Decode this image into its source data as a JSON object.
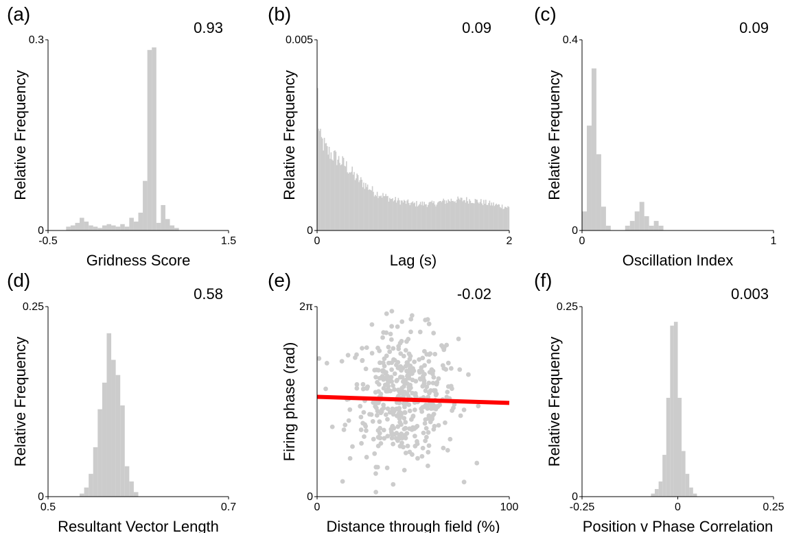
{
  "chart_data": [
    {
      "panel": "(a)",
      "value": "0.93",
      "type": "bar",
      "xlabel": "Gridness Score",
      "ylabel": "Relative Frequency",
      "xlim": [
        -0.5,
        1.5
      ],
      "ylim": [
        0,
        0.3
      ],
      "xticks": [
        "-0.5",
        "1.5"
      ],
      "yticks": [
        "0",
        "0.3"
      ],
      "bin_width": 0.05,
      "bin_start": -0.3,
      "values": [
        0.006,
        0.008,
        0.012,
        0.02,
        0.014,
        0.008,
        0.006,
        0.004,
        0.008,
        0.01,
        0.008,
        0.006,
        0.01,
        0.006,
        0.02,
        0.014,
        0.028,
        0.078,
        0.284,
        0.288,
        0.012,
        0.04,
        0.018,
        0.008,
        0.004
      ]
    },
    {
      "panel": "(b)",
      "value": "0.09",
      "type": "bar",
      "xlabel": "Lag (s)",
      "ylabel": "Relative Frequency",
      "xlim": [
        0,
        2
      ],
      "ylim": [
        0,
        0.005
      ],
      "xticks": [
        "0",
        "2"
      ],
      "yticks": [
        "0",
        "0.005"
      ],
      "x_range": [
        0,
        2
      ],
      "profile": [
        [
          0.0,
          0.0041
        ],
        [
          0.005,
          0.0036
        ],
        [
          0.015,
          0.0028
        ],
        [
          0.03,
          0.0024
        ],
        [
          0.06,
          0.0023
        ],
        [
          0.1,
          0.0021
        ],
        [
          0.2,
          0.0019
        ],
        [
          0.3,
          0.0017
        ],
        [
          0.4,
          0.0014
        ],
        [
          0.5,
          0.0012
        ],
        [
          0.6,
          0.001
        ],
        [
          0.8,
          0.0008
        ],
        [
          1.0,
          0.0007
        ],
        [
          1.2,
          0.0007
        ],
        [
          1.4,
          0.0008
        ],
        [
          1.6,
          0.0008
        ],
        [
          1.8,
          0.0007
        ],
        [
          2.0,
          0.0006
        ]
      ]
    },
    {
      "panel": "(c)",
      "value": "0.09",
      "type": "bar",
      "xlabel": "Oscillation Index",
      "ylabel": "Relative Frequency",
      "xlim": [
        0,
        1
      ],
      "ylim": [
        0,
        0.4
      ],
      "xticks": [
        "0",
        "1"
      ],
      "yticks": [
        "0",
        "0.4"
      ],
      "bin_width": 0.025,
      "bin_start": 0.0,
      "values": [
        0.04,
        0.22,
        0.34,
        0.16,
        0.05,
        0.01,
        0.0,
        0.0,
        0.0,
        0.01,
        0.02,
        0.04,
        0.06,
        0.03,
        0.01,
        0.02,
        0.01
      ]
    },
    {
      "panel": "(d)",
      "value": "0.58",
      "type": "bar",
      "xlabel": "Resultant Vector Length",
      "ylabel": "Relative Frequency",
      "xlim": [
        0.5,
        0.7
      ],
      "ylim": [
        0,
        0.25
      ],
      "xticks": [
        "0.5",
        "0.7"
      ],
      "yticks": [
        "0",
        "0.25"
      ],
      "bin_width": 0.005,
      "bin_start": 0.535,
      "values": [
        0.004,
        0.012,
        0.03,
        0.065,
        0.115,
        0.15,
        0.215,
        0.18,
        0.16,
        0.12,
        0.04,
        0.02,
        0.006
      ]
    },
    {
      "panel": "(e)",
      "value": "-0.02",
      "type": "scatter",
      "xlabel": "Distance through field (%)",
      "ylabel": "Firing phase (rad)",
      "xlim": [
        0,
        100
      ],
      "ylim": [
        0,
        6.2832
      ],
      "xticks": [
        "0",
        "100"
      ],
      "yticks": [
        "0",
        "2π"
      ],
      "fit_line": [
        [
          0,
          3.3
        ],
        [
          100,
          3.1
        ]
      ],
      "n_points": 430,
      "center": [
        45,
        3.3
      ],
      "spread": [
        14,
        1.1
      ]
    },
    {
      "panel": "(f)",
      "value": "0.003",
      "type": "bar",
      "xlabel": "Position v Phase Correlation",
      "ylabel": "Relative Frequency",
      "xlim": [
        -0.25,
        0.25
      ],
      "ylim": [
        0,
        0.25
      ],
      "xticks": [
        "-0.25",
        "0",
        "0.25"
      ],
      "yticks": [
        "0",
        "0.25"
      ],
      "bin_width": 0.01,
      "bin_start": -0.07,
      "values": [
        0.004,
        0.01,
        0.02,
        0.055,
        0.13,
        0.225,
        0.23,
        0.13,
        0.06,
        0.03,
        0.012,
        0.004
      ]
    }
  ]
}
